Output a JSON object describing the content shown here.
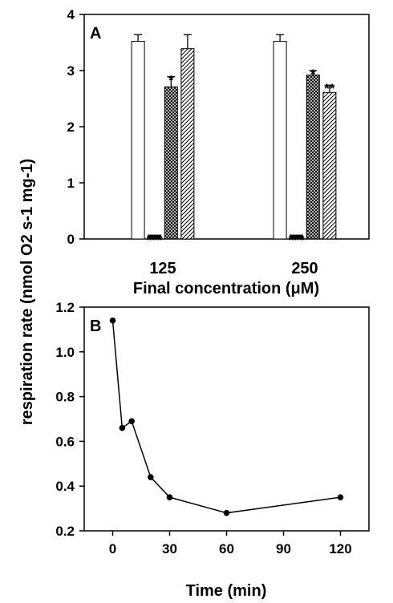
{
  "chart_data": [
    {
      "panel_label": "A",
      "type": "bar",
      "categories": [
        "125",
        "250"
      ],
      "xlabel": "Final concentration (μM)",
      "ylabel": "respiration rate (nmol O2 s-1 mg-1)",
      "ylim": [
        0,
        4
      ],
      "yticks": [
        "0",
        "1",
        "2",
        "3",
        "4"
      ],
      "grid": false,
      "series": [
        {
          "fill": "open",
          "values": [
            3.52,
            3.52
          ],
          "errors": [
            0.12,
            0.12
          ],
          "annotations": [
            "",
            ""
          ]
        },
        {
          "fill": "solid",
          "values": [
            0.07,
            0.07
          ],
          "errors": [
            0.0,
            0.0
          ],
          "annotations": [
            "***",
            "***"
          ]
        },
        {
          "fill": "crosshatch",
          "values": [
            2.71,
            2.92
          ],
          "errors": [
            0.18,
            0.08
          ],
          "annotations": [
            "*",
            "*"
          ]
        },
        {
          "fill": "diagonal",
          "values": [
            3.39,
            2.61
          ],
          "errors": [
            0.25,
            0.13
          ],
          "annotations": [
            "",
            "**"
          ]
        }
      ]
    },
    {
      "panel_label": "B",
      "type": "line",
      "xlabel": "Time (min)",
      "xlim": [
        -15,
        135
      ],
      "xticks": [
        "0",
        "30",
        "60",
        "90",
        "120"
      ],
      "ylim": [
        0.2,
        1.2
      ],
      "yticks": [
        "0.2",
        "0.4",
        "0.6",
        "0.8",
        "1.0",
        "1.2"
      ],
      "grid": false,
      "x": [
        0,
        5,
        10,
        20,
        30,
        60,
        120
      ],
      "y": [
        1.14,
        0.66,
        0.69,
        0.44,
        0.35,
        0.28,
        0.35
      ]
    }
  ]
}
